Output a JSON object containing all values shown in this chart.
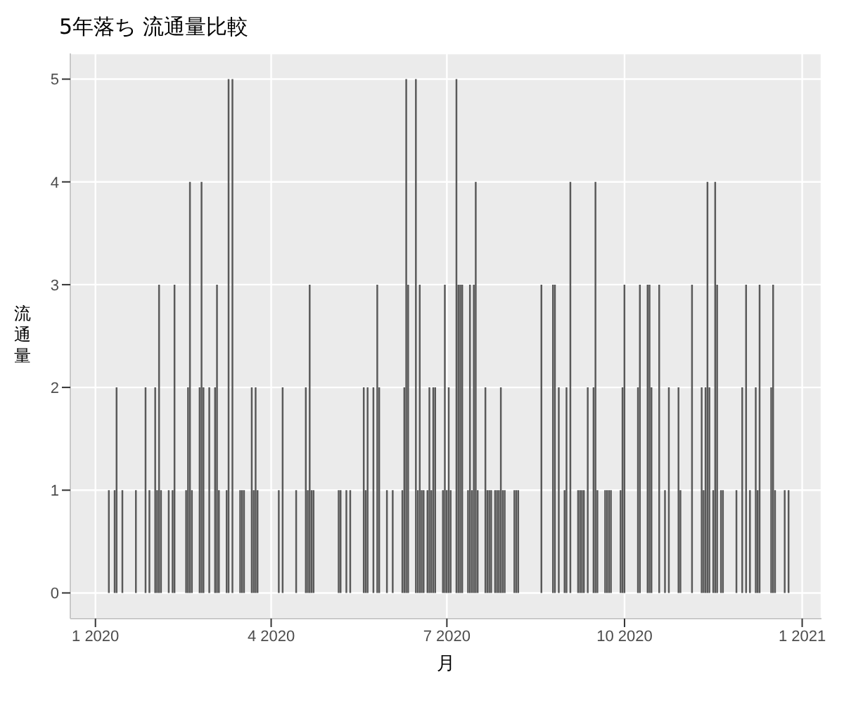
{
  "chart_data": {
    "type": "bar",
    "title": "5年落ち 流通量比較",
    "xlabel": "月",
    "ylabel": "流通量",
    "x": [
      "2020-01-08",
      "2020-01-11",
      "2020-01-12",
      "2020-01-15",
      "2020-01-22",
      "2020-01-27",
      "2020-01-29",
      "2020-02-01",
      "2020-02-02",
      "2020-02-03",
      "2020-02-04",
      "2020-02-08",
      "2020-02-10",
      "2020-02-11",
      "2020-02-17",
      "2020-02-18",
      "2020-02-19",
      "2020-02-20",
      "2020-02-24",
      "2020-02-25",
      "2020-02-26",
      "2020-02-29",
      "2020-03-03",
      "2020-03-04",
      "2020-03-05",
      "2020-03-09",
      "2020-03-10",
      "2020-03-12",
      "2020-03-16",
      "2020-03-17",
      "2020-03-18",
      "2020-03-22",
      "2020-03-23",
      "2020-03-24",
      "2020-03-25",
      "2020-04-05",
      "2020-04-07",
      "2020-04-14",
      "2020-04-19",
      "2020-04-20",
      "2020-04-21",
      "2020-04-22",
      "2020-04-23",
      "2020-05-06",
      "2020-05-07",
      "2020-05-10",
      "2020-05-12",
      "2020-05-19",
      "2020-05-20",
      "2020-05-21",
      "2020-05-24",
      "2020-05-26",
      "2020-05-27",
      "2020-05-31",
      "2020-06-03",
      "2020-06-08",
      "2020-06-09",
      "2020-06-10",
      "2020-06-11",
      "2020-06-15",
      "2020-06-16",
      "2020-06-17",
      "2020-06-18",
      "2020-06-19",
      "2020-06-21",
      "2020-06-22",
      "2020-06-23",
      "2020-06-24",
      "2020-06-25",
      "2020-06-29",
      "2020-06-30",
      "2020-07-01",
      "2020-07-02",
      "2020-07-03",
      "2020-07-06",
      "2020-07-07",
      "2020-07-08",
      "2020-07-09",
      "2020-07-12",
      "2020-07-13",
      "2020-07-14",
      "2020-07-15",
      "2020-07-16",
      "2020-07-17",
      "2020-07-21",
      "2020-07-22",
      "2020-07-23",
      "2020-07-24",
      "2020-07-26",
      "2020-07-27",
      "2020-07-28",
      "2020-07-29",
      "2020-07-30",
      "2020-07-31",
      "2020-08-05",
      "2020-08-06",
      "2020-08-07",
      "2020-08-19",
      "2020-08-25",
      "2020-08-26",
      "2020-08-28",
      "2020-08-31",
      "2020-09-01",
      "2020-09-03",
      "2020-09-07",
      "2020-09-08",
      "2020-09-09",
      "2020-09-10",
      "2020-09-12",
      "2020-09-15",
      "2020-09-16",
      "2020-09-17",
      "2020-09-21",
      "2020-09-22",
      "2020-09-23",
      "2020-09-24",
      "2020-09-29",
      "2020-09-30",
      "2020-10-01",
      "2020-10-08",
      "2020-10-09",
      "2020-10-13",
      "2020-10-14",
      "2020-10-15",
      "2020-10-19",
      "2020-10-22",
      "2020-10-24",
      "2020-10-29",
      "2020-10-30",
      "2020-11-05",
      "2020-11-10",
      "2020-11-11",
      "2020-11-12",
      "2020-11-13",
      "2020-11-14",
      "2020-11-16",
      "2020-11-17",
      "2020-11-18",
      "2020-11-20",
      "2020-11-21",
      "2020-11-28",
      "2020-12-01",
      "2020-12-03",
      "2020-12-05",
      "2020-12-08",
      "2020-12-09",
      "2020-12-10",
      "2020-12-16",
      "2020-12-17",
      "2020-12-18",
      "2020-12-23",
      "2020-12-25"
    ],
    "values": [
      1,
      1,
      2,
      1,
      1,
      2,
      1,
      2,
      1,
      3,
      1,
      1,
      1,
      3,
      1,
      2,
      4,
      1,
      2,
      4,
      2,
      2,
      2,
      3,
      1,
      1,
      5,
      5,
      1,
      1,
      1,
      2,
      1,
      2,
      1,
      1,
      2,
      1,
      2,
      1,
      3,
      1,
      1,
      1,
      1,
      1,
      1,
      2,
      1,
      2,
      2,
      3,
      2,
      1,
      1,
      1,
      2,
      5,
      3,
      5,
      1,
      3,
      1,
      1,
      1,
      2,
      1,
      2,
      2,
      1,
      3,
      1,
      2,
      1,
      5,
      3,
      3,
      3,
      1,
      3,
      1,
      3,
      4,
      1,
      2,
      1,
      1,
      1,
      1,
      1,
      1,
      2,
      1,
      1,
      1,
      1,
      1,
      3,
      3,
      3,
      2,
      1,
      2,
      4,
      1,
      1,
      1,
      1,
      2,
      2,
      4,
      1,
      1,
      1,
      1,
      1,
      1,
      2,
      3,
      2,
      3,
      3,
      3,
      2,
      3,
      1,
      2,
      2,
      1,
      3,
      2,
      1,
      2,
      4,
      2,
      1,
      4,
      3,
      1,
      1,
      1,
      2,
      3,
      1,
      2,
      1,
      3,
      2,
      3,
      1,
      1,
      1
    ],
    "color": "#595959",
    "xlim": [
      "2019-12-19",
      "2021-01-11"
    ],
    "xticks": [
      {
        "value": "2020-01-01",
        "label": "1 2020"
      },
      {
        "value": "2020-04-01",
        "label": "4 2020"
      },
      {
        "value": "2020-07-01",
        "label": "7 2020"
      },
      {
        "value": "2020-10-01",
        "label": "10 2020"
      },
      {
        "value": "2021-01-01",
        "label": "1 2021"
      }
    ],
    "ylim": [
      -0.25,
      5.25
    ],
    "yticks": [
      0,
      1,
      2,
      3,
      4,
      5
    ],
    "grid": true
  }
}
